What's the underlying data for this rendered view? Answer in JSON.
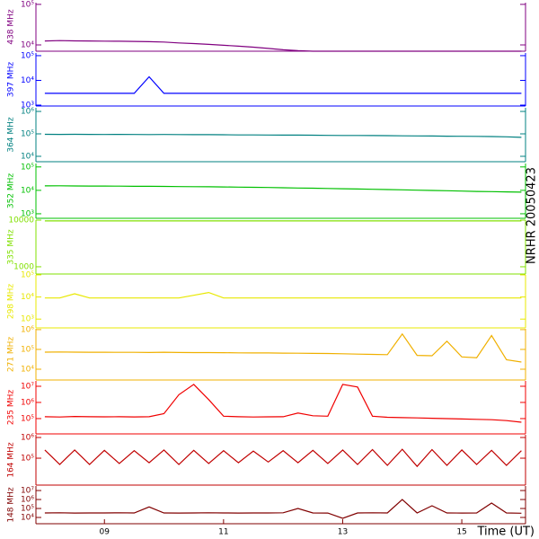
{
  "chart_data": [
    {
      "type": "line",
      "ylabel": "438 MHz",
      "color": "#800080",
      "log": true,
      "ylim": [
        7000,
        110000
      ],
      "yticks": [
        {
          "value": 100000,
          "label": "10⁵"
        },
        {
          "value": 10000,
          "label": "10⁴"
        }
      ],
      "xlim": [
        7.85,
        16.07
      ],
      "x": [
        8,
        8.25,
        8.5,
        8.75,
        9,
        9.25,
        9.5,
        9.75,
        10,
        10.25,
        10.5,
        10.75,
        11,
        11.25,
        11.5,
        11.75,
        12,
        12.25,
        12.5,
        12.75,
        13,
        13.25,
        13.5,
        13.75,
        14,
        14.25,
        14.5,
        14.75,
        15,
        15.25,
        15.5,
        15.75,
        16
      ],
      "values": [
        12500,
        12800,
        12600,
        12500,
        12400,
        12300,
        12200,
        12000,
        11800,
        11200,
        10800,
        10300,
        9800,
        9300,
        8800,
        8200,
        7600,
        7200,
        7000,
        7000,
        7000,
        7000,
        7000,
        7000,
        7000,
        7000,
        7000,
        7000,
        7000,
        7000,
        7000,
        7000,
        7000
      ]
    },
    {
      "type": "line",
      "ylabel": "397 MHz",
      "color": "#0000ff",
      "log": true,
      "ylim": [
        920,
        128000
      ],
      "yticks": [
        {
          "value": 100000,
          "label": "10⁵"
        },
        {
          "value": 10000,
          "label": "10⁴"
        },
        {
          "value": 1000,
          "label": "10³"
        }
      ],
      "xlim": [
        7.85,
        16.07
      ],
      "x": [
        8,
        8.25,
        8.5,
        8.75,
        9,
        9.25,
        9.5,
        9.75,
        10,
        10.25,
        10.5,
        10.75,
        11,
        11.25,
        11.5,
        11.75,
        12,
        12.25,
        12.5,
        12.75,
        13,
        13.25,
        13.5,
        13.75,
        14,
        14.25,
        14.5,
        14.75,
        15,
        15.25,
        15.5,
        15.75,
        16
      ],
      "values": [
        3000,
        3000,
        3000,
        3000,
        3000,
        3000,
        3000,
        14000,
        3000,
        3000,
        3000,
        3000,
        3000,
        3000,
        3000,
        3000,
        3000,
        3000,
        3000,
        3000,
        3000,
        3000,
        3000,
        3000,
        3000,
        3000,
        3000,
        3000,
        3000,
        3000,
        3000,
        3000,
        3000
      ]
    },
    {
      "type": "line",
      "ylabel": "364 MHz",
      "color": "#008080",
      "log": true,
      "ylim": [
        5750,
        1450000
      ],
      "yticks": [
        {
          "value": 1000000,
          "label": "10⁶"
        },
        {
          "value": 100000,
          "label": "10⁵"
        },
        {
          "value": 10000,
          "label": "10⁴"
        }
      ],
      "xlim": [
        7.85,
        16.07
      ],
      "x": [
        8,
        8.25,
        8.5,
        8.75,
        9,
        9.25,
        9.5,
        9.75,
        10,
        10.25,
        10.5,
        10.75,
        11,
        11.25,
        11.5,
        11.75,
        12,
        12.25,
        12.5,
        12.75,
        13,
        13.25,
        13.5,
        13.75,
        14,
        14.25,
        14.5,
        14.75,
        15,
        15.25,
        15.5,
        15.75,
        16
      ],
      "values": [
        96000,
        95000,
        96000,
        95000,
        94000,
        95000,
        94000,
        93000,
        94000,
        93000,
        92000,
        92000,
        91000,
        90000,
        90000,
        89000,
        88000,
        88000,
        87000,
        86000,
        85000,
        85000,
        84000,
        83000,
        82000,
        81000,
        80000,
        79000,
        78000,
        77000,
        76000,
        74000,
        70000
      ]
    },
    {
      "type": "line",
      "ylabel": "352 MHz",
      "color": "#00c000",
      "log": true,
      "ylim": [
        640,
        140000
      ],
      "yticks": [
        {
          "value": 100000,
          "label": "10⁵"
        },
        {
          "value": 10000,
          "label": "10⁴"
        },
        {
          "value": 1000,
          "label": "10³"
        }
      ],
      "xlim": [
        7.85,
        16.07
      ],
      "x": [
        8,
        8.25,
        8.5,
        8.75,
        9,
        9.25,
        9.5,
        9.75,
        10,
        10.25,
        10.5,
        10.75,
        11,
        11.25,
        11.5,
        11.75,
        12,
        12.25,
        12.5,
        12.75,
        13,
        13.25,
        13.5,
        13.75,
        14,
        14.25,
        14.5,
        14.75,
        15,
        15.25,
        15.5,
        15.75,
        16
      ],
      "values": [
        15500,
        15600,
        15400,
        15200,
        15300,
        15100,
        14900,
        14800,
        14700,
        14500,
        14300,
        14200,
        14000,
        13700,
        13500,
        13200,
        12900,
        12600,
        12300,
        12000,
        11700,
        11400,
        11100,
        10800,
        10500,
        10200,
        9900,
        9600,
        9300,
        9000,
        8800,
        8600,
        8400
      ]
    },
    {
      "type": "line",
      "ylabel": "335 MHz",
      "color": "#80e000",
      "log": true,
      "ylim": [
        700,
        10000
      ],
      "yticks": [
        10000,
        1000
      ],
      "xlim": [
        7.85,
        16.07
      ],
      "x": [
        8,
        8.25,
        8.5,
        8.75,
        9,
        9.25,
        9.5,
        9.75,
        10,
        10.25,
        10.5,
        10.75,
        11,
        11.25,
        11.5,
        11.75,
        12,
        12.25,
        12.5,
        12.75,
        13,
        13.25,
        13.5,
        13.75,
        14,
        14.25,
        14.5,
        14.75,
        15,
        15.25,
        15.5,
        15.75,
        16
      ],
      "values": [
        9600,
        9600,
        9600,
        9600,
        9600,
        9600,
        9600,
        9600,
        9600,
        9600,
        9600,
        9600,
        9600,
        9600,
        9600,
        9600,
        9600,
        9600,
        9600,
        9600,
        9600,
        9600,
        9600,
        9600,
        9600,
        9600,
        9600,
        9600,
        9600,
        9600,
        9600,
        9600,
        9600
      ]
    },
    {
      "type": "line",
      "ylabel": "298 MHz",
      "color": "#e8e800",
      "log": true,
      "ylim": [
        400,
        100000
      ],
      "yticks": [
        {
          "value": 100000,
          "label": "10⁵"
        },
        {
          "value": 10000,
          "label": "10⁴"
        },
        {
          "value": 1000,
          "label": "10³"
        }
      ],
      "xlim": [
        7.85,
        16.07
      ],
      "x": [
        8,
        8.25,
        8.5,
        8.75,
        9,
        9.25,
        9.5,
        9.75,
        10,
        10.25,
        10.5,
        10.75,
        11,
        11.25,
        11.5,
        11.75,
        12,
        12.25,
        12.5,
        12.75,
        13,
        13.25,
        13.5,
        13.75,
        14,
        14.25,
        14.5,
        14.75,
        15,
        15.25,
        15.5,
        15.75,
        16
      ],
      "values": [
        9000,
        9000,
        14000,
        9000,
        9000,
        9000,
        9000,
        9000,
        9000,
        9000,
        12000,
        16000,
        9000,
        9000,
        9000,
        9000,
        9000,
        9000,
        9000,
        9000,
        9000,
        9000,
        9000,
        9000,
        9000,
        9000,
        9000,
        9000,
        9000,
        9000,
        9000,
        9000,
        9000
      ]
    },
    {
      "type": "line",
      "ylabel": "271 MHz",
      "color": "#f0b000",
      "log": true,
      "ylim": [
        2850,
        1100000
      ],
      "yticks": [
        {
          "value": 1000000,
          "label": "10⁶"
        },
        {
          "value": 100000,
          "label": "10⁵"
        },
        {
          "value": 10000,
          "label": "10⁴"
        }
      ],
      "xlim": [
        7.85,
        16.07
      ],
      "x": [
        8,
        8.25,
        8.5,
        8.75,
        9,
        9.25,
        9.5,
        9.75,
        10,
        10.25,
        10.5,
        10.75,
        11,
        11.25,
        11.5,
        11.75,
        12,
        12.25,
        12.5,
        12.75,
        13,
        13.25,
        13.5,
        13.75,
        14,
        14.25,
        14.5,
        14.75,
        15,
        15.25,
        15.5,
        15.75,
        16
      ],
      "values": [
        73000,
        74000,
        73000,
        72000,
        72000,
        71000,
        71000,
        70000,
        72000,
        70000,
        69000,
        69000,
        68000,
        67000,
        66000,
        66000,
        65000,
        64000,
        63000,
        62000,
        60000,
        58000,
        56000,
        54000,
        600000,
        50000,
        48000,
        260000,
        42000,
        38000,
        500000,
        30000,
        23000
      ]
    },
    {
      "type": "line",
      "ylabel": "235 MHz",
      "color": "#f00000",
      "log": true,
      "ylim": [
        11300,
        21500000
      ],
      "yticks": [
        {
          "value": 10000000,
          "label": "10⁷"
        },
        {
          "value": 1000000,
          "label": "10⁶"
        },
        {
          "value": 100000,
          "label": "10⁵"
        }
      ],
      "xlim": [
        7.85,
        16.07
      ],
      "x": [
        8,
        8.25,
        8.5,
        8.75,
        9,
        9.25,
        9.5,
        9.75,
        10,
        10.25,
        10.5,
        10.75,
        11,
        11.25,
        11.5,
        11.75,
        12,
        12.25,
        12.5,
        12.75,
        13,
        13.25,
        13.5,
        13.75,
        14,
        14.25,
        14.5,
        14.75,
        15,
        15.25,
        15.5,
        15.75,
        16
      ],
      "values": [
        130000,
        125000,
        135000,
        130000,
        128000,
        130000,
        127000,
        130000,
        200000,
        3000000,
        13000000,
        1500000,
        140000,
        130000,
        125000,
        128000,
        130000,
        220000,
        150000,
        140000,
        13000000,
        9000000,
        140000,
        120000,
        115000,
        110000,
        105000,
        100000,
        95000,
        90000,
        85000,
        75000,
        60000
      ]
    },
    {
      "type": "line",
      "ylabel": "164 MHz",
      "color": "#c00000",
      "log": true,
      "ylim": [
        5000,
        1350000
      ],
      "yticks": [
        {
          "value": 1000000,
          "label": "10⁶"
        },
        {
          "value": 100000,
          "label": "10⁵"
        }
      ],
      "xlim": [
        7.85,
        16.07
      ],
      "x": [
        8,
        8.25,
        8.5,
        8.75,
        9,
        9.25,
        9.5,
        9.75,
        10,
        10.25,
        10.5,
        10.75,
        11,
        11.25,
        11.5,
        11.75,
        12,
        12.25,
        12.5,
        12.75,
        13,
        13.25,
        13.5,
        13.75,
        14,
        14.25,
        14.5,
        14.75,
        15,
        15.25,
        15.5,
        15.75,
        16
      ],
      "values": [
        250000,
        50000,
        250000,
        50000,
        240000,
        55000,
        230000,
        60000,
        250000,
        50000,
        240000,
        55000,
        230000,
        60000,
        220000,
        65000,
        230000,
        60000,
        240000,
        55000,
        250000,
        50000,
        260000,
        45000,
        270000,
        40000,
        260000,
        45000,
        250000,
        50000,
        240000,
        45000,
        230000
      ]
    },
    {
      "type": "line",
      "ylabel": "148 MHz",
      "color": "#800000",
      "log": true,
      "ylim": [
        2000,
        32000000
      ],
      "yticks": [
        {
          "value": 10000000,
          "label": "10⁷"
        },
        {
          "value": 1000000,
          "label": "10⁶"
        },
        {
          "value": 100000,
          "label": "10⁵"
        },
        {
          "value": 10000,
          "label": "10⁴"
        }
      ],
      "xlim": [
        7.85,
        16.07
      ],
      "xticks": [
        {
          "value": 9,
          "label": "09"
        },
        {
          "value": 11,
          "label": "11"
        },
        {
          "value": 13,
          "label": "13"
        },
        {
          "value": 15,
          "label": "15"
        }
      ],
      "xlabel": "Time (UT)",
      "x": [
        8,
        8.25,
        8.5,
        8.75,
        9,
        9.25,
        9.5,
        9.75,
        10,
        10.25,
        10.5,
        10.75,
        11,
        11.25,
        11.5,
        11.75,
        12,
        12.25,
        12.5,
        12.75,
        13,
        13.25,
        13.5,
        13.75,
        14,
        14.25,
        14.5,
        14.75,
        15,
        15.25,
        15.5,
        15.75,
        16
      ],
      "values": [
        32000,
        33000,
        31000,
        32000,
        32000,
        33000,
        32000,
        150000,
        32000,
        31000,
        32000,
        33000,
        32000,
        31000,
        32000,
        32000,
        33000,
        100000,
        32000,
        31000,
        8000,
        32000,
        33000,
        32000,
        1000000,
        32000,
        200000,
        32000,
        31000,
        32000,
        400000,
        32000,
        30000
      ]
    }
  ],
  "side_label": "NRHR 20050423"
}
